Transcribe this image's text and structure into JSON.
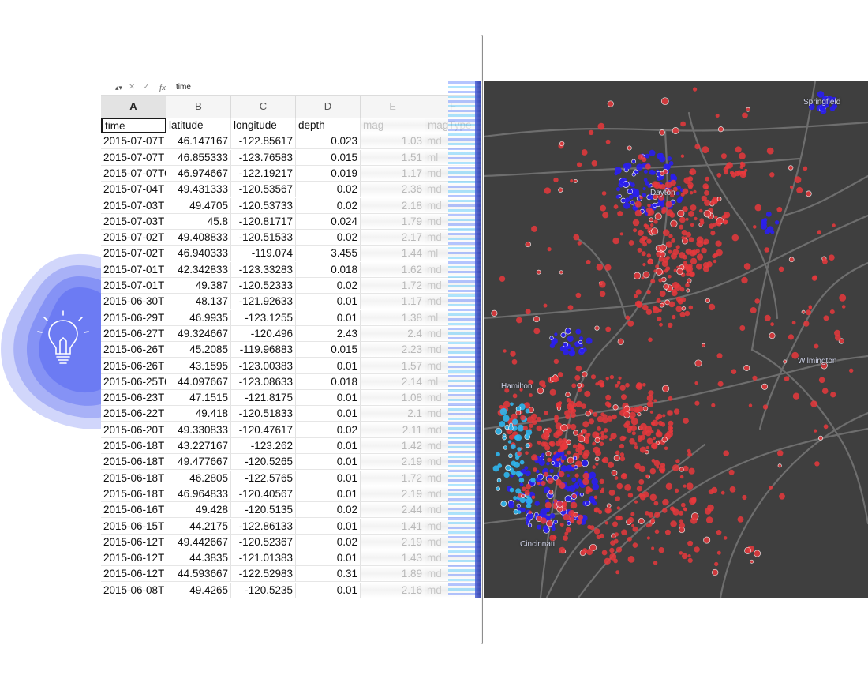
{
  "formula_bar": {
    "stepper_icon": "▴▾",
    "cancel_icon": "✕",
    "confirm_icon": "✓",
    "fx_icon": "fx",
    "value": "time"
  },
  "columns": [
    "A",
    "B",
    "C",
    "D",
    "E",
    "F"
  ],
  "headers": [
    "time",
    "latitude",
    "longitude",
    "depth",
    "mag",
    "magType"
  ],
  "rows": [
    [
      "2015-07-07T",
      "46.147167",
      "-122.85617",
      "0.023",
      "1.03",
      "md"
    ],
    [
      "2015-07-07T",
      "46.855333",
      "-123.76583",
      "0.015",
      "1.51",
      "ml"
    ],
    [
      "2015-07-07T0",
      "46.974667",
      "-122.19217",
      "0.019",
      "1.17",
      "md"
    ],
    [
      "2015-07-04T",
      "49.431333",
      "-120.53567",
      "0.02",
      "2.36",
      "md"
    ],
    [
      "2015-07-03T",
      "49.4705",
      "-120.53733",
      "0.02",
      "2.18",
      "md"
    ],
    [
      "2015-07-03T",
      "45.8",
      "-120.81717",
      "0.024",
      "1.79",
      "md"
    ],
    [
      "2015-07-02T",
      "49.408833",
      "-120.51533",
      "0.02",
      "2.17",
      "md"
    ],
    [
      "2015-07-02T",
      "46.940333",
      "-119.074",
      "3.455",
      "1.44",
      "ml"
    ],
    [
      "2015-07-01T",
      "42.342833",
      "-123.33283",
      "0.018",
      "1.62",
      "md"
    ],
    [
      "2015-07-01T",
      "49.387",
      "-120.52333",
      "0.02",
      "1.72",
      "md"
    ],
    [
      "2015-06-30T",
      "48.137",
      "-121.92633",
      "0.01",
      "1.17",
      "md"
    ],
    [
      "2015-06-29T",
      "46.9935",
      "-123.1255",
      "0.01",
      "1.38",
      "ml"
    ],
    [
      "2015-06-27T",
      "49.324667",
      "-120.496",
      "2.43",
      "2.4",
      "md"
    ],
    [
      "2015-06-26T",
      "45.2085",
      "-119.96883",
      "0.015",
      "2.23",
      "md"
    ],
    [
      "2015-06-26T",
      "43.1595",
      "-123.00383",
      "0.01",
      "1.57",
      "md"
    ],
    [
      "2015-06-25T0",
      "44.097667",
      "-123.08633",
      "0.018",
      "2.14",
      "ml"
    ],
    [
      "2015-06-23T",
      "47.1515",
      "-121.8175",
      "0.01",
      "1.08",
      "md"
    ],
    [
      "2015-06-22T",
      "49.418",
      "-120.51833",
      "0.01",
      "2.1",
      "md"
    ],
    [
      "2015-06-20T",
      "49.330833",
      "-120.47617",
      "0.02",
      "2.11",
      "md"
    ],
    [
      "2015-06-18T",
      "43.227167",
      "-123.262",
      "0.01",
      "1.42",
      "md"
    ],
    [
      "2015-06-18T",
      "49.477667",
      "-120.5265",
      "0.01",
      "2.19",
      "md"
    ],
    [
      "2015-06-18T",
      "46.2805",
      "-122.5765",
      "0.01",
      "1.72",
      "md"
    ],
    [
      "2015-06-18T",
      "46.964833",
      "-120.40567",
      "0.01",
      "2.19",
      "md"
    ],
    [
      "2015-06-16T",
      "49.428",
      "-120.5135",
      "0.02",
      "2.44",
      "md"
    ],
    [
      "2015-06-15T",
      "44.2175",
      "-122.86133",
      "0.01",
      "1.41",
      "md"
    ],
    [
      "2015-06-12T",
      "49.442667",
      "-120.52367",
      "0.02",
      "2.19",
      "md"
    ],
    [
      "2015-06-12T",
      "44.3835",
      "-121.01383",
      "0.01",
      "1.43",
      "md"
    ],
    [
      "2015-06-12T",
      "44.593667",
      "-122.52983",
      "0.31",
      "1.89",
      "md"
    ],
    [
      "2015-06-08T",
      "49.4265",
      "-120.5235",
      "0.01",
      "2.16",
      "md"
    ]
  ],
  "map": {
    "labels": {
      "springfield": "Springfield",
      "dayton": "Dayton",
      "wilmington": "Wilmington",
      "hamilton": "Hamilton",
      "cincinnati": "Cincinnati"
    },
    "colors": {
      "background": "#3f3f3f",
      "roads": "#6e6e6e",
      "point_red": "#e8383c",
      "point_blue": "#2a1ef0",
      "point_cyan": "#2fb6ee"
    }
  },
  "icons": {
    "bulb": "lightbulb-icon"
  },
  "colors": {
    "blob": "#5b6cf2"
  }
}
